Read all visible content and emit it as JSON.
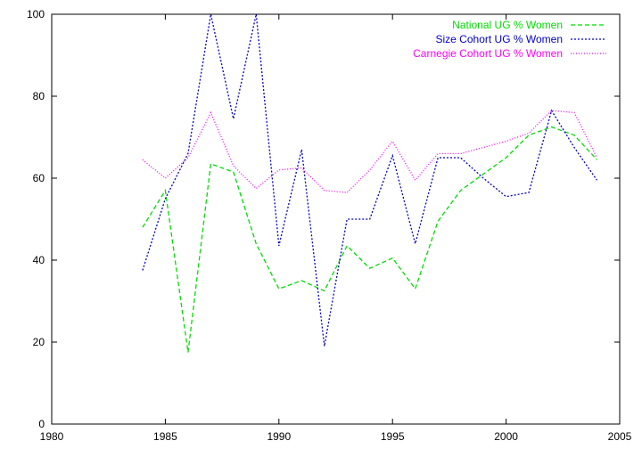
{
  "chart_data": {
    "type": "line",
    "title": "",
    "xlabel": "",
    "ylabel": "",
    "xlim": [
      1980,
      2005
    ],
    "ylim": [
      0,
      100
    ],
    "x_ticks": [
      "1980",
      "1985",
      "1990",
      "1995",
      "2000",
      "2005"
    ],
    "y_ticks": [
      "0",
      "20",
      "40",
      "60",
      "80",
      "100"
    ],
    "grid": false,
    "legend_position": "top-right",
    "x": [
      1984,
      1985,
      1986,
      1987,
      1988,
      1989,
      1990,
      1991,
      1992,
      1993,
      1994,
      1995,
      1996,
      1997,
      1998,
      1999,
      2000,
      2001,
      2002,
      2003,
      2004
    ],
    "series": [
      {
        "name": "National UG % Women",
        "color": "#00dd00",
        "dash": "dashed",
        "values": [
          48,
          57,
          17.5,
          63.5,
          61.5,
          44,
          33,
          35,
          32.5,
          43.5,
          38,
          40.5,
          33,
          49.5,
          57,
          61,
          65,
          70.5,
          72.5,
          70.5,
          64.5
        ]
      },
      {
        "name": "Size Cohort UG % Women",
        "color": "#0000cc",
        "dash": "dotted-dense",
        "values": [
          37.5,
          55,
          66,
          100,
          74.5,
          100,
          43.5,
          67,
          19,
          50,
          50,
          65.5,
          44,
          65,
          65,
          60,
          55.5,
          56.5,
          76.5,
          67.5,
          59.5
        ]
      },
      {
        "name": "Carnegie Cohort UG % Women",
        "color": "#ff00ff",
        "dash": "dotted",
        "values": [
          64.5,
          60,
          65,
          76,
          63,
          57.5,
          62,
          62.5,
          57,
          56.5,
          62,
          69,
          59.5,
          66,
          66,
          67.5,
          69,
          71,
          76.5,
          76,
          65
        ]
      }
    ]
  }
}
